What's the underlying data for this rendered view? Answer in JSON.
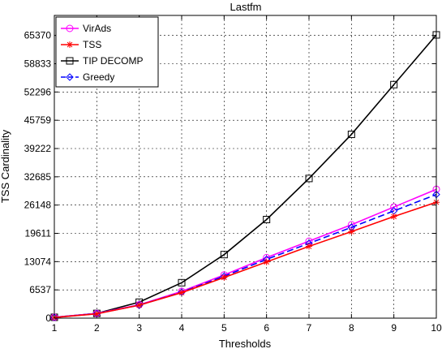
{
  "chart_data": {
    "type": "line",
    "title": "Lastfm",
    "xlabel": "Thresholds",
    "ylabel": "TSS Cardinality",
    "xlim": [
      1,
      10
    ],
    "ylim": [
      0,
      70000
    ],
    "x_ticks": [
      1,
      2,
      3,
      4,
      5,
      6,
      7,
      8,
      9,
      10
    ],
    "y_ticks": [
      0,
      6537,
      13074,
      19611,
      26148,
      32685,
      39222,
      45759,
      52296,
      58833,
      65370
    ],
    "grid": true,
    "legend_position": "top-left",
    "x": [
      1,
      2,
      3,
      4,
      5,
      6,
      7,
      8,
      9,
      10
    ],
    "series": [
      {
        "name": "VirAds",
        "color": "#ff00ff",
        "marker": "circle",
        "line": "solid",
        "values": [
          200,
          1100,
          3100,
          6200,
          10000,
          14000,
          17800,
          21600,
          25700,
          29800
        ]
      },
      {
        "name": "TSS",
        "color": "#ff0000",
        "marker": "star",
        "line": "solid",
        "values": [
          150,
          1000,
          3000,
          5900,
          9400,
          13000,
          16600,
          20000,
          23500,
          26800
        ]
      },
      {
        "name": "TIP DECOMP",
        "color": "#000000",
        "marker": "square",
        "line": "solid",
        "values": [
          200,
          1100,
          3700,
          8200,
          14700,
          22800,
          32300,
          42500,
          54000,
          65500
        ]
      },
      {
        "name": "Greedy",
        "color": "#0000ff",
        "marker": "diamond",
        "line": "dashed",
        "values": [
          150,
          1050,
          3000,
          6000,
          9700,
          13600,
          17300,
          21000,
          24800,
          28600
        ]
      }
    ]
  }
}
